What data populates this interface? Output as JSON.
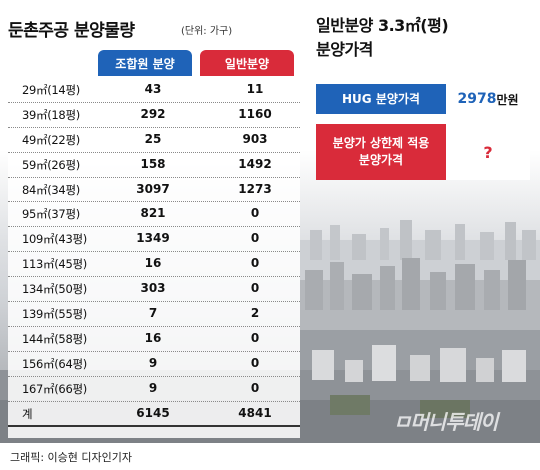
{
  "title": "둔촌주공 분양물량",
  "unit": "(단위: 가구)",
  "columns": [
    "조합원 분양",
    "일반분양"
  ],
  "rows": [
    {
      "size": "29㎡(14평)",
      "member": "43",
      "general": "11"
    },
    {
      "size": "39㎡(18평)",
      "member": "292",
      "general": "1160"
    },
    {
      "size": "49㎡(22평)",
      "member": "25",
      "general": "903"
    },
    {
      "size": "59㎡(26평)",
      "member": "158",
      "general": "1492"
    },
    {
      "size": "84㎡(34평)",
      "member": "3097",
      "general": "1273"
    },
    {
      "size": "95㎡(37평)",
      "member": "821",
      "general": "0"
    },
    {
      "size": "109㎡(43평)",
      "member": "1349",
      "general": "0"
    },
    {
      "size": "113㎡(45평)",
      "member": "16",
      "general": "0"
    },
    {
      "size": "134㎡(50평)",
      "member": "303",
      "general": "0"
    },
    {
      "size": "139㎡(55평)",
      "member": "7",
      "general": "2"
    },
    {
      "size": "144㎡(58평)",
      "member": "16",
      "general": "0"
    },
    {
      "size": "156㎡(64평)",
      "member": "9",
      "general": "0"
    },
    {
      "size": "167㎡(66평)",
      "member": "9",
      "general": "0"
    }
  ],
  "total": {
    "label": "계",
    "member": "6145",
    "general": "4841"
  },
  "right": {
    "title_line1": "일반분양 3.3㎡(평)",
    "title_line2": "분양가격",
    "hug_label": "HUG 분양가격",
    "hug_value": "2978",
    "hug_unit": "만원",
    "cap_label_line1": "분양가 상한제 적용",
    "cap_label_line2": "분양가격",
    "cap_value": "?"
  },
  "logo": "ㅁ머니투데이",
  "credit": "그래픽: 이승현 디자인기자",
  "colors": {
    "blue": "#1f63b8",
    "red": "#d92b3a"
  }
}
